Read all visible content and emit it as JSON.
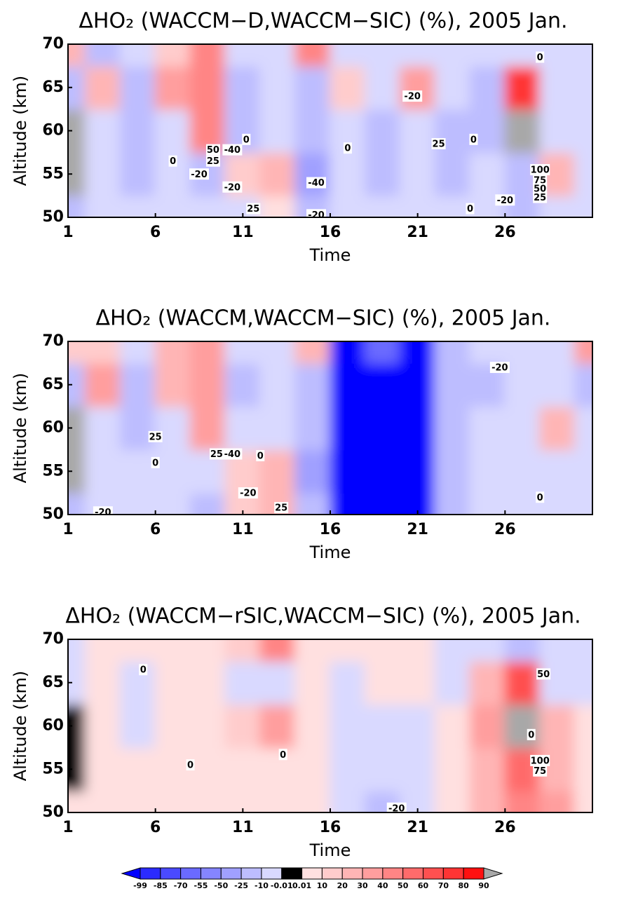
{
  "chart_data": [
    {
      "type": "contour",
      "title": "ΔHO₂ (WACCM−D,WACCM−SIC) (%), 2005 Jan.",
      "x_label": "Time",
      "y_label": "Altitude (km)",
      "xlim": [
        1,
        31
      ],
      "ylim": [
        50,
        70
      ],
      "xticks": [
        1,
        6,
        11,
        16,
        21,
        26
      ],
      "yticks": [
        50,
        55,
        60,
        65,
        70
      ],
      "x": [
        1,
        3,
        5,
        7,
        9,
        11,
        13,
        15,
        17,
        19,
        21,
        23,
        25,
        27,
        29,
        31
      ],
      "y": [
        50,
        55,
        60,
        65,
        70
      ],
      "z": [
        [
          -20,
          -10,
          -10,
          -10,
          -10,
          -10,
          5,
          -20,
          -10,
          -10,
          -10,
          -10,
          -10,
          -20,
          -5,
          -10
        ],
        [
          95,
          -10,
          -20,
          -10,
          -20,
          15,
          25,
          -30,
          -10,
          -20,
          -10,
          -20,
          -10,
          -25,
          20,
          -10
        ],
        [
          95,
          -10,
          -20,
          -10,
          45,
          -20,
          -10,
          -25,
          -10,
          -20,
          -10,
          -20,
          -20,
          95,
          -10,
          -10
        ],
        [
          -20,
          25,
          -20,
          30,
          45,
          -20,
          -10,
          -20,
          10,
          -10,
          30,
          -10,
          -20,
          70,
          -10,
          -10
        ],
        [
          20,
          -20,
          -10,
          10,
          40,
          -10,
          -10,
          40,
          -10,
          -10,
          -10,
          -10,
          -10,
          -10,
          -10,
          -10
        ]
      ],
      "contour_labels": [
        {
          "x": 7,
          "y": 56.5,
          "label": "0"
        },
        {
          "x": 8.5,
          "y": 55,
          "label": "-20"
        },
        {
          "x": 9.3,
          "y": 57.8,
          "label": "50"
        },
        {
          "x": 10.4,
          "y": 57.8,
          "label": "-40"
        },
        {
          "x": 9.3,
          "y": 56.5,
          "label": "25"
        },
        {
          "x": 10.4,
          "y": 53.5,
          "label": "-20"
        },
        {
          "x": 11.2,
          "y": 59,
          "label": "0"
        },
        {
          "x": 11.6,
          "y": 51,
          "label": "25"
        },
        {
          "x": 15.2,
          "y": 54,
          "label": "-40"
        },
        {
          "x": 15.2,
          "y": 50.3,
          "label": "-20"
        },
        {
          "x": 17,
          "y": 58,
          "label": "0"
        },
        {
          "x": 20.7,
          "y": 64,
          "label": "-20"
        },
        {
          "x": 22.2,
          "y": 58.5,
          "label": "25"
        },
        {
          "x": 24.2,
          "y": 59,
          "label": "0"
        },
        {
          "x": 24,
          "y": 51,
          "label": "0"
        },
        {
          "x": 26,
          "y": 52,
          "label": "-20"
        },
        {
          "x": 28,
          "y": 68.5,
          "label": "0"
        },
        {
          "x": 28,
          "y": 55.5,
          "label": "100"
        },
        {
          "x": 28,
          "y": 54.3,
          "label": "75"
        },
        {
          "x": 28,
          "y": 53.3,
          "label": "50"
        },
        {
          "x": 28,
          "y": 52.3,
          "label": "25"
        }
      ]
    },
    {
      "type": "contour",
      "title": "ΔHO₂ (WACCM,WACCM−SIC) (%), 2005 Jan.",
      "x_label": "Time",
      "y_label": "Altitude (km)",
      "xlim": [
        1,
        31
      ],
      "ylim": [
        50,
        70
      ],
      "xticks": [
        1,
        6,
        11,
        16,
        21,
        26
      ],
      "yticks": [
        50,
        55,
        60,
        65,
        70
      ],
      "x": [
        1,
        3,
        5,
        7,
        9,
        11,
        13,
        15,
        17,
        19,
        21,
        23,
        25,
        27,
        29,
        31
      ],
      "y": [
        50,
        55,
        60,
        65,
        70
      ],
      "z": [
        [
          -20,
          -10,
          -10,
          -10,
          -20,
          15,
          20,
          -20,
          -100,
          -100,
          -100,
          -20,
          -10,
          -10,
          -10,
          -10
        ],
        [
          95,
          -10,
          -10,
          -10,
          -10,
          15,
          20,
          -30,
          -100,
          -100,
          -100,
          -20,
          -10,
          -10,
          -10,
          -10
        ],
        [
          95,
          -10,
          -20,
          -10,
          35,
          -10,
          -10,
          -25,
          -100,
          -100,
          -100,
          -25,
          -10,
          -10,
          20,
          -10
        ],
        [
          -20,
          30,
          -20,
          25,
          30,
          -20,
          -10,
          -20,
          -100,
          -100,
          -100,
          -25,
          -20,
          -10,
          -10,
          -20
        ],
        [
          10,
          10,
          -10,
          20,
          30,
          -10,
          -10,
          20,
          -100,
          -70,
          -100,
          -20,
          -10,
          -10,
          -10,
          30
        ]
      ],
      "contour_labels": [
        {
          "x": 6,
          "y": 59,
          "label": "25"
        },
        {
          "x": 6,
          "y": 56,
          "label": "0"
        },
        {
          "x": 9.5,
          "y": 57,
          "label": "25"
        },
        {
          "x": 10.4,
          "y": 57,
          "label": "-40"
        },
        {
          "x": 11.3,
          "y": 52.5,
          "label": "-20"
        },
        {
          "x": 12,
          "y": 56.8,
          "label": "0"
        },
        {
          "x": 13.2,
          "y": 50.8,
          "label": "25"
        },
        {
          "x": 3,
          "y": 50.3,
          "label": "-20"
        },
        {
          "x": 25.7,
          "y": 67,
          "label": "-20"
        },
        {
          "x": 28,
          "y": 52,
          "label": "0"
        }
      ]
    },
    {
      "type": "contour",
      "title": "ΔHO₂ (WACCM−rSIC,WACCM−SIC) (%), 2005 Jan.",
      "x_label": "Time",
      "y_label": "Altitude (km)",
      "xlim": [
        1,
        31
      ],
      "ylim": [
        50,
        70
      ],
      "xticks": [
        1,
        6,
        11,
        16,
        21,
        26
      ],
      "yticks": [
        50,
        55,
        60,
        65,
        70
      ],
      "x": [
        1,
        3,
        5,
        7,
        9,
        11,
        13,
        15,
        17,
        19,
        21,
        23,
        25,
        27,
        29,
        31
      ],
      "y": [
        50,
        55,
        60,
        65,
        70
      ],
      "z": [
        [
          5,
          5,
          5,
          5,
          5,
          5,
          5,
          5,
          -10,
          -20,
          -10,
          5,
          20,
          40,
          30,
          5
        ],
        [
          0,
          5,
          5,
          5,
          5,
          5,
          5,
          5,
          -10,
          -10,
          -10,
          5,
          20,
          50,
          20,
          5
        ],
        [
          0,
          5,
          -10,
          5,
          5,
          10,
          30,
          5,
          -10,
          -10,
          -10,
          5,
          30,
          95,
          20,
          5
        ],
        [
          -10,
          5,
          -10,
          5,
          5,
          -10,
          -10,
          5,
          -10,
          5,
          5,
          -10,
          20,
          60,
          -10,
          -10
        ],
        [
          -10,
          5,
          5,
          5,
          5,
          10,
          40,
          5,
          5,
          5,
          5,
          -10,
          -10,
          -20,
          -10,
          -10
        ]
      ],
      "contour_labels": [
        {
          "x": 5.3,
          "y": 66.5,
          "label": "0"
        },
        {
          "x": 8,
          "y": 55.5,
          "label": "0"
        },
        {
          "x": 13.3,
          "y": 56.7,
          "label": "0"
        },
        {
          "x": 19.8,
          "y": 50.5,
          "label": "-20"
        },
        {
          "x": 27.5,
          "y": 59,
          "label": "0"
        },
        {
          "x": 28.2,
          "y": 66,
          "label": "50"
        },
        {
          "x": 28,
          "y": 56,
          "label": "100"
        },
        {
          "x": 28,
          "y": 54.8,
          "label": "75"
        }
      ]
    }
  ],
  "colorbar": {
    "levels": [
      -99,
      -85,
      -70,
      -55,
      -50,
      -25,
      -10,
      -0.01,
      0.01,
      10,
      20,
      30,
      40,
      50,
      60,
      70,
      80,
      90
    ],
    "colors": [
      "#0000ff",
      "#2b2bff",
      "#4a4aff",
      "#6a6aff",
      "#8585ff",
      "#a0a0ff",
      "#bdbdff",
      "#d9d9ff",
      "#000000",
      "#ffe0e0",
      "#ffcccc",
      "#ffb5b5",
      "#ff9e9e",
      "#ff8585",
      "#ff6b6b",
      "#ff5050",
      "#ff3434",
      "#ff1010",
      "#a8a8a8"
    ]
  }
}
